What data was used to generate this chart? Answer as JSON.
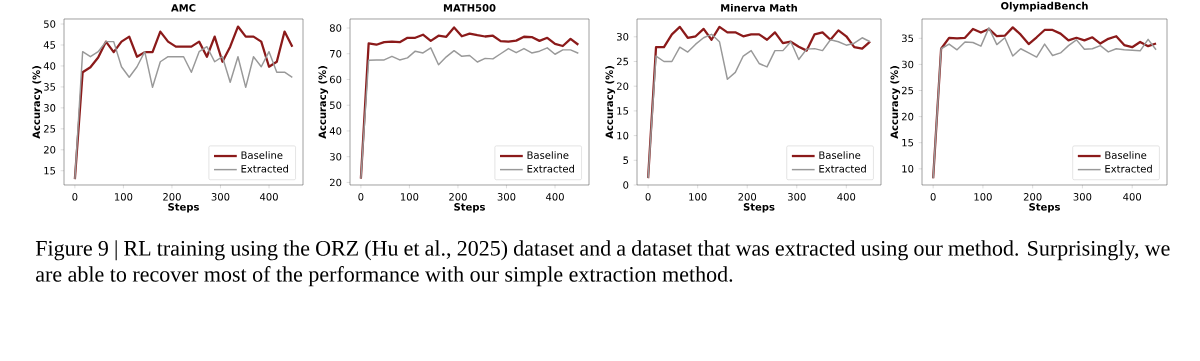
{
  "chart_data": [
    {
      "type": "line",
      "title": "AMC",
      "xlabel": "Steps",
      "ylabel": "Accuracy (%)",
      "x": [
        0,
        16,
        32,
        48,
        64,
        80,
        96,
        112,
        128,
        144,
        160,
        176,
        192,
        208,
        224,
        240,
        256,
        272,
        288,
        304,
        320,
        336,
        352,
        368,
        384,
        400,
        416,
        432,
        448
      ],
      "xlim": [
        -22.4,
        470
      ],
      "ylim": [
        11.6,
        51.2
      ],
      "xticks": [
        0,
        100,
        200,
        300,
        400
      ],
      "yticks": [
        15,
        20,
        25,
        30,
        35,
        40,
        45,
        50
      ],
      "legend": "bottom right",
      "grid": false,
      "series": [
        {
          "name": "Baseline",
          "color": "#8b1a1a",
          "values": [
            13,
            38.5,
            39.7,
            42,
            45.8,
            43.3,
            45.8,
            47,
            42.2,
            43.3,
            43.3,
            48.2,
            45.8,
            44.6,
            44.6,
            44.6,
            45.8,
            42.2,
            47,
            41,
            44.6,
            49.4,
            47,
            47,
            45.8,
            39.8,
            41,
            48.2,
            44.6
          ]
        },
        {
          "name": "Extracted",
          "color": "#999999",
          "values": [
            13,
            43.4,
            42.2,
            43.4,
            45.8,
            45.8,
            39.8,
            37.3,
            39.8,
            43.4,
            34.9,
            41,
            42.2,
            42.2,
            42.2,
            38.5,
            43.4,
            44.6,
            41,
            42.2,
            36.1,
            42.2,
            34.9,
            42.2,
            39.8,
            43.4,
            38.5,
            38.5,
            37.3
          ]
        }
      ],
      "annotations": [
        "Figure 9 | RL training using the ORZ (Hu et al., 2025) dataset and a dataset that was extracted using our method. Surprisingly, we are able to recover most of the performance with our simple extraction method."
      ]
    },
    {
      "type": "line",
      "title": "MATH500",
      "xlabel": "Steps",
      "ylabel": "Accuracy (%)",
      "x": [
        0,
        16,
        32,
        48,
        64,
        80,
        96,
        112,
        128,
        144,
        160,
        176,
        192,
        208,
        224,
        240,
        256,
        272,
        288,
        304,
        320,
        336,
        352,
        368,
        384,
        400,
        416,
        432,
        448
      ],
      "xlim": [
        -22.4,
        470
      ],
      "ylim": [
        19,
        83.5
      ],
      "xticks": [
        0,
        100,
        200,
        300,
        400
      ],
      "yticks": [
        20,
        30,
        40,
        50,
        60,
        70,
        80
      ],
      "legend": "bottom right",
      "grid": false,
      "series": [
        {
          "name": "Baseline",
          "color": "#8b1a1a",
          "values": [
            21.5,
            74,
            73.5,
            74.5,
            74.7,
            74.5,
            76.2,
            76.2,
            77.4,
            75,
            77,
            76.6,
            80.2,
            76.8,
            77.8,
            77.2,
            76.7,
            77,
            74.9,
            74.7,
            75.1,
            76.6,
            76.5,
            75,
            76.2,
            73.8,
            73,
            75.8,
            73.5
          ]
        },
        {
          "name": "Extracted",
          "color": "#999999",
          "values": [
            21.5,
            67.5,
            67.6,
            67.6,
            69,
            67.6,
            68.4,
            71,
            70.3,
            72.3,
            65.7,
            68.8,
            71.2,
            69,
            69.3,
            66.8,
            68.2,
            68,
            70,
            72,
            70.4,
            72,
            70.3,
            71,
            72.3,
            69.8,
            71.5,
            71.5,
            70.2
          ]
        }
      ]
    },
    {
      "type": "line",
      "title": "Minerva Math",
      "xlabel": "Steps",
      "ylabel": "Accuracy (%)",
      "x": [
        0,
        16,
        32,
        48,
        64,
        80,
        96,
        112,
        128,
        144,
        160,
        176,
        192,
        208,
        224,
        240,
        256,
        272,
        288,
        304,
        320,
        336,
        352,
        368,
        384,
        400,
        416,
        432,
        448
      ],
      "xlim": [
        -22.4,
        470
      ],
      "ylim": [
        0,
        33.6
      ],
      "xticks": [
        0,
        100,
        200,
        300,
        400
      ],
      "yticks": [
        0,
        5,
        10,
        15,
        20,
        25,
        30
      ],
      "legend": "bottom right",
      "grid": false,
      "series": [
        {
          "name": "Baseline",
          "color": "#8b1a1a",
          "values": [
            1.4,
            27.9,
            27.9,
            30.5,
            32,
            29.8,
            30.1,
            31.6,
            29.4,
            32,
            30.9,
            30.9,
            30.1,
            30.5,
            30.5,
            29.4,
            30.9,
            28.7,
            29,
            28,
            27.2,
            30.5,
            30.9,
            29.4,
            31.3,
            30.1,
            27.9,
            27.6,
            29
          ]
        },
        {
          "name": "Extracted",
          "color": "#999999",
          "values": [
            1.4,
            26.1,
            25,
            25,
            27.9,
            26.9,
            28.5,
            29.8,
            30.5,
            29,
            21.4,
            22.8,
            26.1,
            27.2,
            24.6,
            23.9,
            27.2,
            27.2,
            29,
            25.4,
            27.5,
            27.6,
            27.2,
            29.4,
            29,
            28.3,
            28.7,
            29.8,
            29
          ]
        }
      ]
    },
    {
      "type": "line",
      "title": "OlympiadBench",
      "xlabel": "Steps",
      "ylabel": "Accuracy (%)",
      "x": [
        0,
        16,
        32,
        48,
        64,
        80,
        96,
        112,
        128,
        144,
        160,
        176,
        192,
        208,
        224,
        240,
        256,
        272,
        288,
        304,
        320,
        336,
        352,
        368,
        384,
        400,
        416,
        432,
        448
      ],
      "xlim": [
        -22.4,
        470
      ],
      "ylim": [
        6.9,
        38.7
      ],
      "xticks": [
        0,
        100,
        200,
        300,
        400
      ],
      "yticks": [
        10,
        15,
        20,
        25,
        30,
        35
      ],
      "legend": "bottom right",
      "grid": false,
      "series": [
        {
          "name": "Baseline",
          "color": "#8b1a1a",
          "values": [
            8.2,
            33,
            35.1,
            35,
            35.1,
            36.8,
            36.1,
            36.8,
            35.4,
            35.5,
            37.1,
            35.7,
            33.9,
            35.2,
            36.6,
            36.6,
            35.9,
            34.6,
            35.1,
            34.6,
            35.2,
            34,
            34.9,
            35.4,
            33.7,
            33.3,
            34.3,
            33.5,
            34
          ]
        },
        {
          "name": "Extracted",
          "color": "#999999",
          "values": [
            8.2,
            33,
            33.9,
            32.8,
            34.3,
            34.2,
            33.5,
            37,
            33.8,
            35.1,
            31.6,
            33,
            32.2,
            31.4,
            33.9,
            31.7,
            32.2,
            33.6,
            34.7,
            32.9,
            33,
            33.6,
            32.4,
            33,
            32.8,
            32.7,
            32.6,
            34.8,
            32.8
          ]
        }
      ]
    }
  ]
}
